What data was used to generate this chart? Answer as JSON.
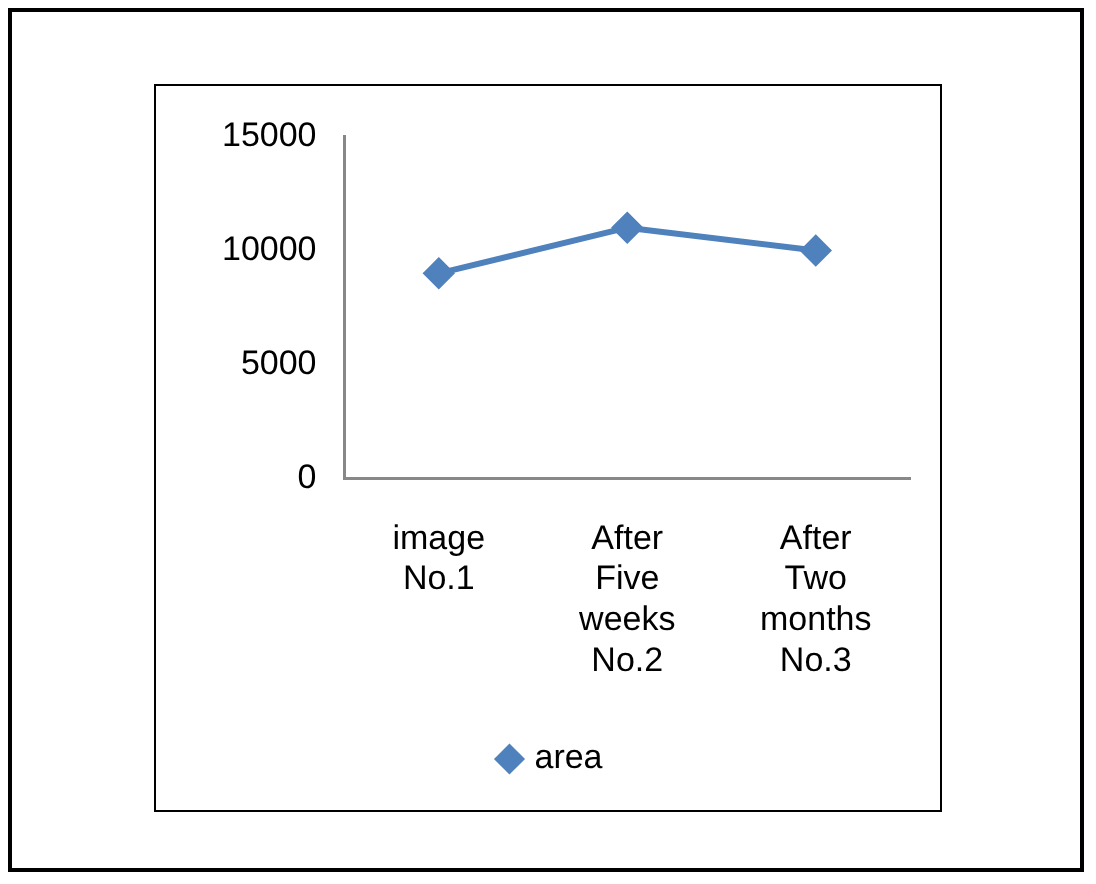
{
  "chart_data": {
    "type": "line",
    "categories": [
      "image No.1",
      "After Five weeks No.2",
      "After Two months No.3"
    ],
    "series": [
      {
        "name": "area",
        "color": "#4f81bd",
        "values": [
          9000,
          11000,
          10000
        ]
      }
    ],
    "ylim": [
      0,
      15000
    ],
    "yticks": [
      0,
      5000,
      10000,
      15000
    ],
    "grid": false,
    "legend": "bottom",
    "marker": "diamond",
    "line_style": "solid"
  }
}
